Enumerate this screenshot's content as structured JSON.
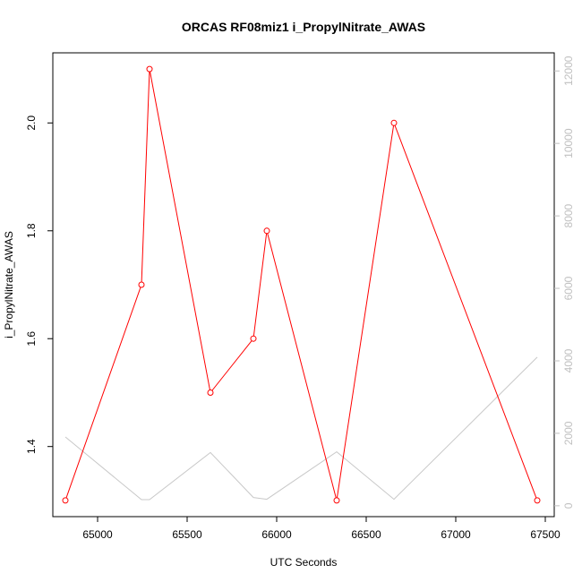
{
  "chart_data": {
    "type": "line",
    "title": "ORCAS RF08miz1 i_PropylNitrate_AWAS",
    "xlabel": "UTC Seconds",
    "ylabel": "i_PropylNitrate_AWAS",
    "xlim": [
      64750,
      67550
    ],
    "ylim": [
      1.27,
      2.13
    ],
    "y2lim": [
      -300,
      12500
    ],
    "x_ticks": [
      65000,
      65500,
      66000,
      66500,
      67000,
      67500
    ],
    "y_ticks": [
      1.4,
      1.6,
      1.8,
      2.0
    ],
    "y2_ticks": [
      0,
      2000,
      4000,
      6000,
      8000,
      10000,
      12000
    ],
    "grid": false,
    "series": [
      {
        "color": "#ff0000",
        "axis": "left",
        "markers": "open-circle",
        "x": [
          64820,
          65245,
          65290,
          65630,
          65870,
          65945,
          66335,
          66655,
          67455
        ],
        "y": [
          1.3,
          1.7,
          2.1,
          1.5,
          1.6,
          1.8,
          1.3,
          2.0,
          1.3
        ]
      },
      {
        "color": "#c8c8c8",
        "axis": "right",
        "markers": "none",
        "x": [
          64820,
          65245,
          65290,
          65630,
          65870,
          65945,
          66335,
          66655,
          67455
        ],
        "y": [
          1900,
          170,
          170,
          1470,
          230,
          180,
          1490,
          180,
          4100
        ]
      }
    ]
  }
}
